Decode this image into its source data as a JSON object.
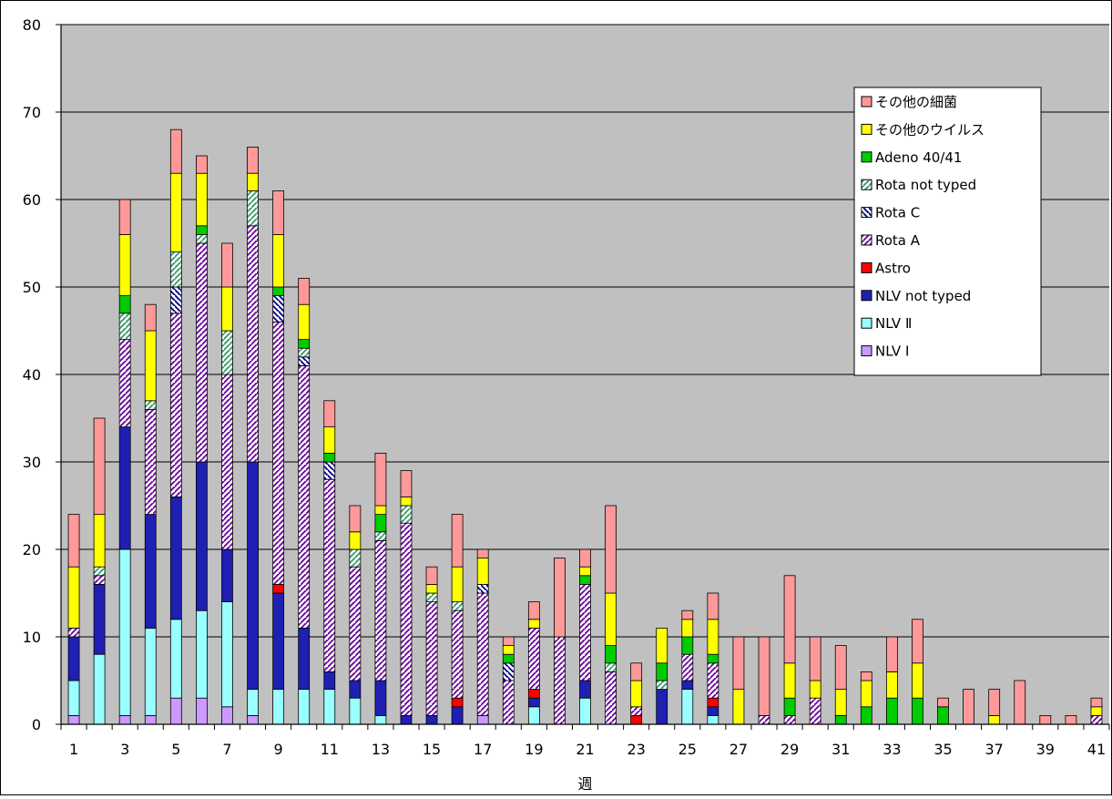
{
  "chart_data": {
    "type": "bar",
    "stacked": true,
    "xlabel": "週",
    "ylim": [
      0,
      80
    ],
    "yticks": [
      0,
      10,
      20,
      30,
      40,
      50,
      60,
      70,
      80
    ],
    "xtick_labels": [
      "1",
      "3",
      "5",
      "7",
      "9",
      "11",
      "13",
      "15",
      "17",
      "19",
      "21",
      "23",
      "25",
      "27",
      "29",
      "31",
      "33",
      "35",
      "37",
      "39",
      "41"
    ],
    "grid": true,
    "legend_position": "top-right",
    "plot_background": "#c0c0c0",
    "categories": [
      1,
      2,
      3,
      4,
      5,
      6,
      7,
      8,
      9,
      10,
      11,
      12,
      13,
      14,
      15,
      16,
      17,
      18,
      19,
      20,
      21,
      22,
      23,
      24,
      25,
      26,
      27,
      28,
      29,
      30,
      31,
      32,
      33,
      34,
      35,
      36,
      37,
      38,
      39,
      40,
      41
    ],
    "series": [
      {
        "name": "NLV Ⅰ",
        "color": "#cc99ff",
        "pattern": "solid",
        "values": [
          1,
          0,
          1,
          1,
          3,
          3,
          2,
          1,
          0,
          0,
          0,
          0,
          0,
          0,
          0,
          0,
          1,
          0,
          0,
          0,
          0,
          0,
          0,
          0,
          0,
          0,
          0,
          0,
          0,
          0,
          0,
          0,
          0,
          0,
          0,
          0,
          0,
          0,
          0,
          0,
          0
        ]
      },
      {
        "name": "NLV Ⅱ",
        "color": "#99ffff",
        "pattern": "solid",
        "values": [
          4,
          8,
          19,
          10,
          9,
          10,
          12,
          3,
          4,
          4,
          4,
          3,
          1,
          0,
          0,
          0,
          0,
          0,
          2,
          0,
          3,
          0,
          0,
          0,
          4,
          1,
          0,
          0,
          0,
          0,
          0,
          0,
          0,
          0,
          0,
          0,
          0,
          0,
          0,
          0,
          0
        ]
      },
      {
        "name": "NLV not typed",
        "color": "#1f1fb4",
        "pattern": "solid",
        "values": [
          5,
          8,
          14,
          13,
          14,
          17,
          6,
          26,
          11,
          7,
          2,
          2,
          4,
          1,
          1,
          2,
          0,
          0,
          1,
          0,
          2,
          0,
          0,
          4,
          1,
          1,
          0,
          0,
          0,
          0,
          0,
          0,
          0,
          0,
          0,
          0,
          0,
          0,
          0,
          0,
          0
        ]
      },
      {
        "name": "Astro",
        "color": "#ff0000",
        "pattern": "solid",
        "values": [
          0,
          0,
          0,
          0,
          0,
          0,
          0,
          0,
          1,
          0,
          0,
          0,
          0,
          0,
          0,
          1,
          0,
          0,
          1,
          0,
          0,
          0,
          1,
          0,
          0,
          1,
          0,
          0,
          0,
          0,
          0,
          0,
          0,
          0,
          0,
          0,
          0,
          0,
          0,
          0,
          0
        ]
      },
      {
        "name": "Rota A",
        "color": "#660099",
        "pattern": "diag-a",
        "values": [
          1,
          1,
          10,
          12,
          21,
          25,
          20,
          27,
          30,
          30,
          22,
          13,
          16,
          22,
          13,
          10,
          14,
          5,
          7,
          10,
          11,
          6,
          1,
          0,
          3,
          4,
          0,
          1,
          1,
          3,
          0,
          0,
          0,
          0,
          0,
          0,
          0,
          0,
          0,
          0,
          1
        ]
      },
      {
        "name": "Rota C",
        "color": "#000080",
        "pattern": "diag-c",
        "values": [
          0,
          0,
          0,
          0,
          3,
          0,
          0,
          0,
          3,
          1,
          2,
          0,
          0,
          0,
          0,
          0,
          1,
          2,
          0,
          0,
          0,
          0,
          0,
          0,
          0,
          0,
          0,
          0,
          0,
          0,
          0,
          0,
          0,
          0,
          0,
          0,
          0,
          0,
          0,
          0,
          0
        ]
      },
      {
        "name": "Rota not typed",
        "color": "#339966",
        "pattern": "diag-nt",
        "values": [
          0,
          1,
          3,
          1,
          4,
          1,
          5,
          4,
          0,
          1,
          0,
          2,
          1,
          2,
          1,
          1,
          0,
          0,
          0,
          0,
          0,
          1,
          0,
          1,
          0,
          0,
          0,
          0,
          0,
          0,
          0,
          0,
          0,
          0,
          0,
          0,
          0,
          0,
          0,
          0,
          0
        ]
      },
      {
        "name": "Adeno 40/41",
        "color": "#00cc00",
        "pattern": "solid",
        "values": [
          0,
          0,
          2,
          0,
          0,
          1,
          0,
          0,
          1,
          1,
          1,
          0,
          2,
          0,
          0,
          0,
          0,
          1,
          0,
          0,
          1,
          2,
          0,
          2,
          2,
          1,
          0,
          0,
          2,
          0,
          1,
          2,
          3,
          3,
          2,
          0,
          0,
          0,
          0,
          0,
          0
        ]
      },
      {
        "name": "その他のウイルス",
        "color": "#ffff00",
        "pattern": "solid",
        "values": [
          7,
          6,
          7,
          8,
          9,
          6,
          5,
          2,
          6,
          4,
          3,
          2,
          1,
          1,
          1,
          4,
          3,
          1,
          1,
          0,
          1,
          6,
          3,
          4,
          2,
          4,
          4,
          0,
          4,
          2,
          3,
          3,
          3,
          4,
          0,
          0,
          1,
          0,
          0,
          0,
          1
        ]
      },
      {
        "name": "その他の細菌",
        "color": "#ff9999",
        "pattern": "solid",
        "values": [
          6,
          11,
          4,
          3,
          5,
          2,
          5,
          3,
          5,
          3,
          3,
          3,
          6,
          3,
          2,
          6,
          1,
          1,
          2,
          9,
          2,
          10,
          2,
          0,
          1,
          3,
          6,
          9,
          10,
          5,
          5,
          1,
          4,
          5,
          1,
          4,
          3,
          5,
          1,
          1,
          1
        ]
      }
    ]
  }
}
